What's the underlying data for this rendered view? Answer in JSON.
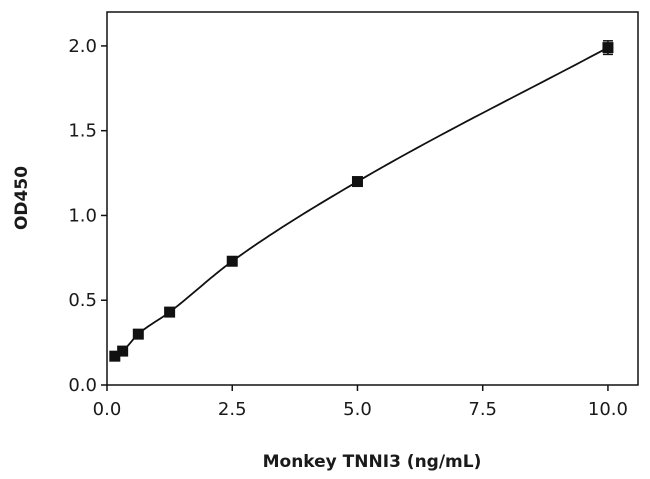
{
  "chart_data": {
    "type": "scatter",
    "title": "",
    "xlabel": "Monkey TNNI3 (ng/mL)",
    "ylabel": "OD450",
    "xlim": [
      0,
      10.6
    ],
    "ylim": [
      0,
      2.2
    ],
    "x_ticks": [
      "0.0",
      "2.5",
      "5.0",
      "7.5",
      "10.0"
    ],
    "x_tick_values": [
      0,
      2.5,
      5.0,
      7.5,
      10.0
    ],
    "y_ticks": [
      "0.0",
      "0.5",
      "1.0",
      "1.5",
      "2.0"
    ],
    "y_tick_values": [
      0,
      0.5,
      1.0,
      1.5,
      2.0
    ],
    "grid": false,
    "legend": "none",
    "series": [
      {
        "x": [
          0.156,
          0.3125,
          0.625,
          1.25,
          2.5,
          5.0,
          10.0
        ],
        "y": [
          0.17,
          0.2,
          0.3,
          0.43,
          0.73,
          1.2,
          1.99
        ],
        "error": [
          0.01,
          0.01,
          0.01,
          0.01,
          0.01,
          0.015,
          0.04
        ],
        "marker": "square",
        "fit_curve": true
      }
    ],
    "colors": {
      "mark": "#111111",
      "axis": "#111111"
    }
  }
}
